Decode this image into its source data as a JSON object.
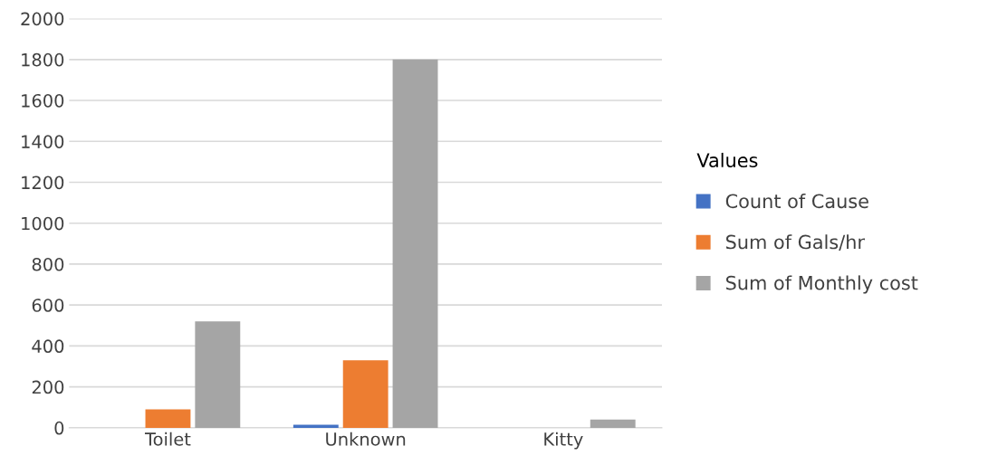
{
  "chart_data": {
    "type": "bar",
    "categories": [
      "Toilet",
      "Unknown",
      "Kitty"
    ],
    "series": [
      {
        "name": "Count of Cause",
        "color": "#4472c4",
        "values": [
          null,
          15,
          null
        ]
      },
      {
        "name": "Sum of Gals/hr",
        "color": "#ed7d31",
        "values": [
          90,
          330,
          null
        ]
      },
      {
        "name": "Sum of Monthly cost",
        "color": "#a5a5a5",
        "values": [
          520,
          1800,
          40
        ]
      }
    ],
    "legend_title": "Values",
    "legend": "right",
    "ylim": [
      0,
      2000
    ],
    "yticks": [
      0,
      200,
      400,
      600,
      800,
      1000,
      1200,
      1400,
      1600,
      1800,
      2000
    ],
    "grid": "y"
  }
}
